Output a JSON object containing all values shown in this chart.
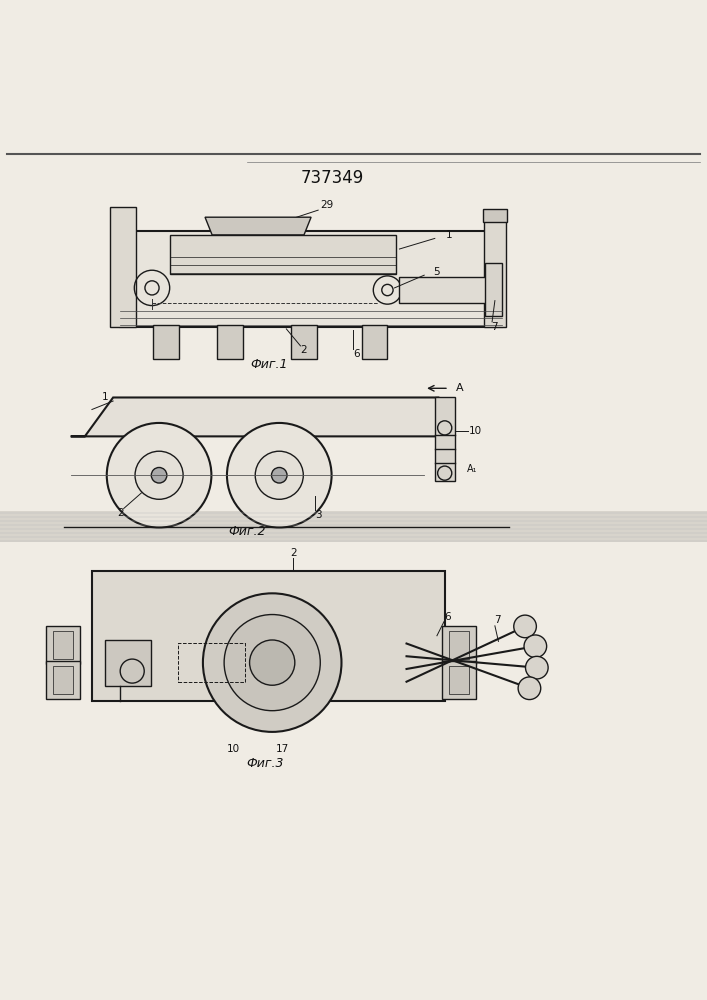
{
  "patent_number": "737349",
  "bg_color": "#f0ece4",
  "line_color": "#1a1a1a",
  "dashed_color": "#333333",
  "fig1_caption": "Фиг.1",
  "fig2_caption": "Фиг.2",
  "fig3_caption": "Фиг.3"
}
